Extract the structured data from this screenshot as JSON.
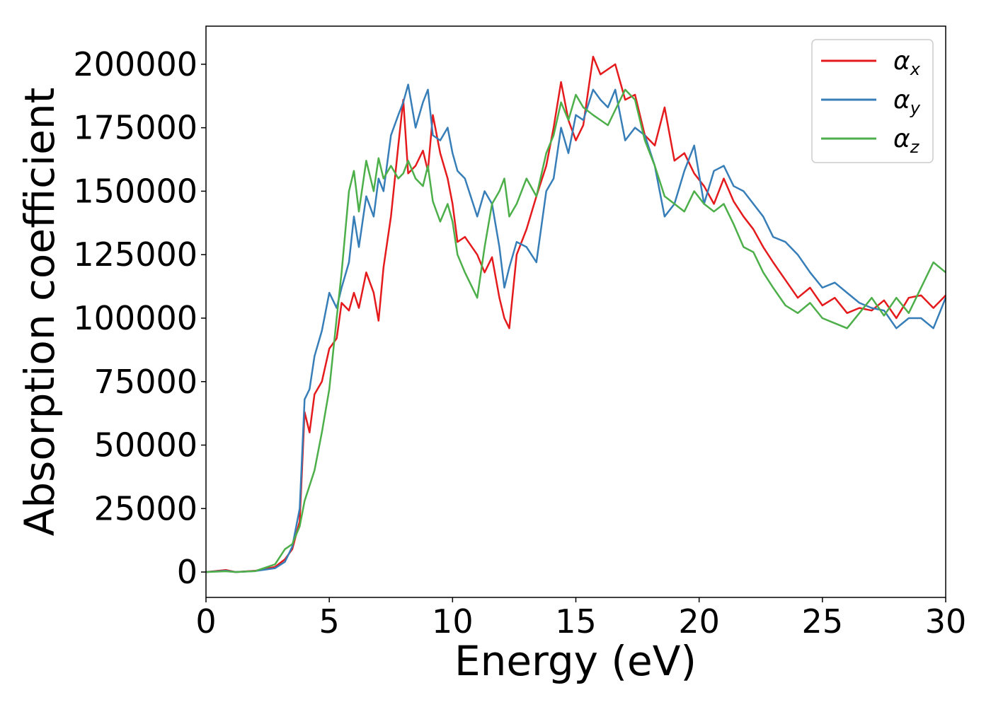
{
  "chart_data": {
    "type": "line",
    "xlabel": "Energy (eV)",
    "ylabel": "Absorption coefficient",
    "xlim": [
      0,
      30
    ],
    "ylim": [
      -10000,
      215000
    ],
    "x_ticks": [
      "0",
      "5",
      "10",
      "15",
      "20",
      "25",
      "30"
    ],
    "y_ticks": [
      "0",
      "25000",
      "50000",
      "75000",
      "100000",
      "125000",
      "150000",
      "175000",
      "200000"
    ],
    "grid": false,
    "legend_position": "top-right",
    "series": [
      {
        "name": "α_x",
        "label_main": "α",
        "label_sub": "x",
        "color": "#e41a1c",
        "x": [
          0,
          0.8,
          1.2,
          2.0,
          2.8,
          3.2,
          3.5,
          3.8,
          4.0,
          4.2,
          4.4,
          4.7,
          5.0,
          5.3,
          5.5,
          5.8,
          6.0,
          6.2,
          6.5,
          6.8,
          7.0,
          7.2,
          7.5,
          7.8,
          8.0,
          8.2,
          8.5,
          8.8,
          9.0,
          9.2,
          9.5,
          9.8,
          10.0,
          10.2,
          10.5,
          11.0,
          11.3,
          11.6,
          11.9,
          12.1,
          12.3,
          12.6,
          13.0,
          13.4,
          13.8,
          14.1,
          14.4,
          14.7,
          15.0,
          15.3,
          15.7,
          16.0,
          16.3,
          16.6,
          17.0,
          17.4,
          17.8,
          18.2,
          18.6,
          19.0,
          19.4,
          19.8,
          20.2,
          20.6,
          21.0,
          21.4,
          21.8,
          22.2,
          22.6,
          23.0,
          23.5,
          24.0,
          24.5,
          25.0,
          25.5,
          26.0,
          26.5,
          27.0,
          27.5,
          28.0,
          28.5,
          29.0,
          29.5,
          30.0
        ],
        "y": [
          0,
          800,
          0,
          500,
          2000,
          5000,
          9000,
          20000,
          63000,
          55000,
          70000,
          75000,
          88000,
          92000,
          106000,
          103000,
          110000,
          104000,
          118000,
          110000,
          99000,
          120000,
          140000,
          168000,
          186000,
          157000,
          160000,
          166000,
          158000,
          180000,
          165000,
          155000,
          145000,
          130000,
          132000,
          125000,
          118000,
          124000,
          108000,
          100000,
          96000,
          125000,
          135000,
          148000,
          160000,
          175000,
          193000,
          178000,
          170000,
          176000,
          203000,
          196000,
          198000,
          200000,
          186000,
          188000,
          172000,
          168000,
          183000,
          162000,
          165000,
          157000,
          152000,
          145000,
          155000,
          146000,
          140000,
          135000,
          128000,
          122000,
          115000,
          108000,
          112000,
          105000,
          108000,
          102000,
          104000,
          103000,
          107000,
          100000,
          108000,
          109000,
          104000,
          109000
        ]
      },
      {
        "name": "α_y",
        "label_main": "α",
        "label_sub": "y",
        "color": "#377eb8",
        "x": [
          0,
          0.8,
          1.2,
          2.0,
          2.8,
          3.2,
          3.5,
          3.8,
          4.0,
          4.2,
          4.4,
          4.7,
          5.0,
          5.3,
          5.5,
          5.8,
          6.0,
          6.2,
          6.5,
          6.8,
          7.0,
          7.2,
          7.5,
          7.8,
          8.0,
          8.2,
          8.5,
          8.8,
          9.0,
          9.2,
          9.5,
          9.8,
          10.0,
          10.2,
          10.5,
          11.0,
          11.3,
          11.6,
          11.9,
          12.1,
          12.3,
          12.6,
          13.0,
          13.4,
          13.8,
          14.1,
          14.4,
          14.7,
          15.0,
          15.3,
          15.7,
          16.0,
          16.3,
          16.6,
          17.0,
          17.4,
          17.8,
          18.2,
          18.6,
          19.0,
          19.4,
          19.8,
          20.2,
          20.6,
          21.0,
          21.4,
          21.8,
          22.2,
          22.6,
          23.0,
          23.5,
          24.0,
          24.5,
          25.0,
          25.5,
          26.0,
          26.5,
          27.0,
          27.5,
          28.0,
          28.5,
          29.0,
          29.5,
          30.0
        ],
        "y": [
          0,
          500,
          0,
          400,
          1500,
          4000,
          10000,
          25000,
          68000,
          72000,
          85000,
          95000,
          110000,
          104000,
          112000,
          122000,
          140000,
          128000,
          148000,
          140000,
          155000,
          150000,
          172000,
          180000,
          185000,
          192000,
          175000,
          185000,
          190000,
          172000,
          170000,
          175000,
          165000,
          158000,
          155000,
          140000,
          150000,
          145000,
          128000,
          112000,
          120000,
          130000,
          128000,
          122000,
          150000,
          155000,
          175000,
          165000,
          180000,
          178000,
          190000,
          186000,
          183000,
          190000,
          170000,
          175000,
          172000,
          160000,
          140000,
          145000,
          158000,
          168000,
          145000,
          158000,
          160000,
          152000,
          150000,
          145000,
          140000,
          132000,
          130000,
          125000,
          118000,
          112000,
          114000,
          110000,
          106000,
          104000,
          103000,
          96000,
          100000,
          100000,
          96000,
          108000
        ]
      },
      {
        "name": "α_z",
        "label_main": "α",
        "label_sub": "z",
        "color": "#4daf4a",
        "x": [
          0,
          0.8,
          1.2,
          2.0,
          2.8,
          3.2,
          3.5,
          3.8,
          4.0,
          4.2,
          4.4,
          4.7,
          5.0,
          5.3,
          5.5,
          5.8,
          6.0,
          6.2,
          6.5,
          6.8,
          7.0,
          7.2,
          7.5,
          7.8,
          8.0,
          8.2,
          8.5,
          8.8,
          9.0,
          9.2,
          9.5,
          9.8,
          10.0,
          10.2,
          10.5,
          11.0,
          11.3,
          11.6,
          11.9,
          12.1,
          12.3,
          12.6,
          13.0,
          13.4,
          13.8,
          14.1,
          14.4,
          14.7,
          15.0,
          15.3,
          15.7,
          16.0,
          16.3,
          16.6,
          17.0,
          17.4,
          17.8,
          18.2,
          18.6,
          19.0,
          19.4,
          19.8,
          20.2,
          20.6,
          21.0,
          21.4,
          21.8,
          22.2,
          22.6,
          23.0,
          23.5,
          24.0,
          24.5,
          25.0,
          25.5,
          26.0,
          26.5,
          27.0,
          27.5,
          28.0,
          28.5,
          29.0,
          29.5,
          30.0
        ],
        "y": [
          0,
          300,
          0,
          400,
          3000,
          9000,
          11000,
          18000,
          28000,
          34000,
          40000,
          55000,
          72000,
          100000,
          118000,
          150000,
          158000,
          142000,
          162000,
          150000,
          163000,
          155000,
          160000,
          155000,
          157000,
          162000,
          155000,
          152000,
          160000,
          146000,
          138000,
          145000,
          138000,
          125000,
          118000,
          108000,
          128000,
          145000,
          150000,
          155000,
          140000,
          145000,
          155000,
          148000,
          165000,
          172000,
          185000,
          178000,
          188000,
          183000,
          180000,
          178000,
          176000,
          182000,
          190000,
          186000,
          170000,
          160000,
          148000,
          145000,
          142000,
          150000,
          145000,
          142000,
          145000,
          137000,
          128000,
          126000,
          118000,
          112000,
          105000,
          102000,
          106000,
          100000,
          98000,
          96000,
          102000,
          108000,
          101000,
          108000,
          102000,
          112000,
          122000,
          118000
        ]
      }
    ]
  }
}
